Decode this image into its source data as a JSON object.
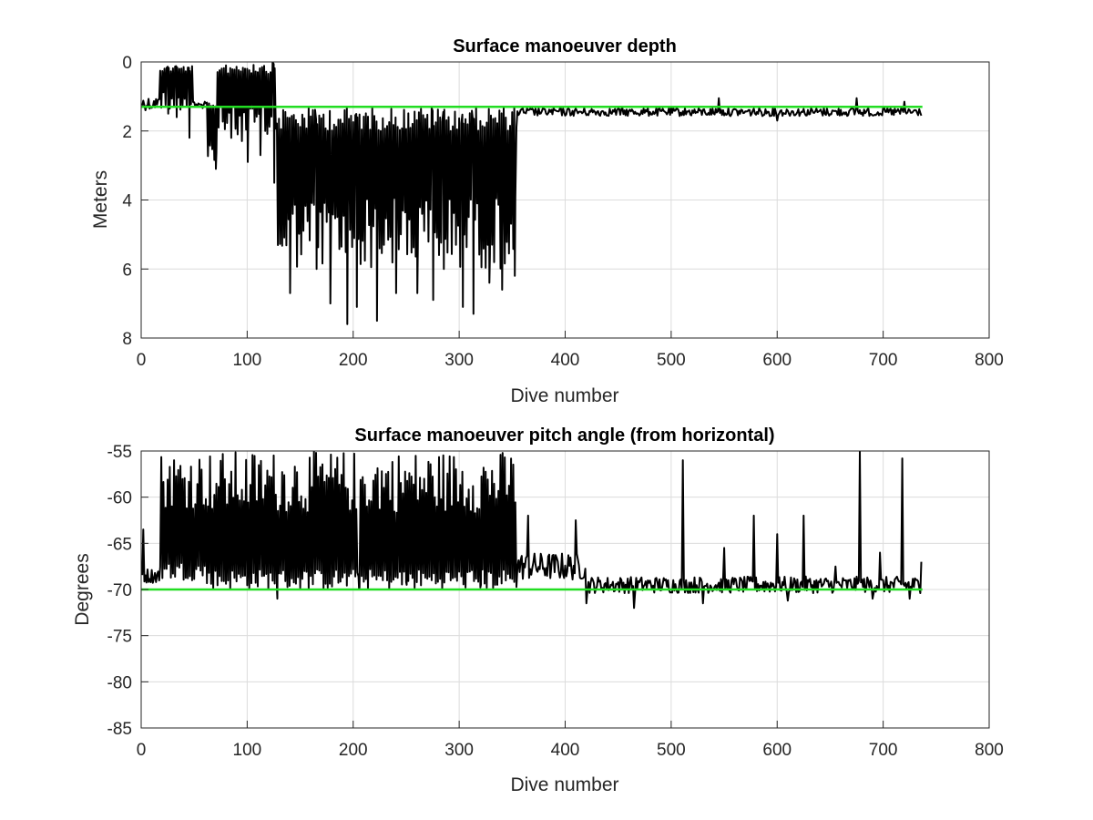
{
  "colors": {
    "data_line": "#000000",
    "reference_line": "#22dd22",
    "grid": "#dcdcdc",
    "axis": "#262626"
  },
  "chart_data": [
    {
      "type": "line",
      "title": "Surface manoeuver depth",
      "xlabel": "Dive number",
      "ylabel": "Meters",
      "xlim": [
        0,
        800
      ],
      "ylim": [
        0,
        8
      ],
      "y_reversed": true,
      "grid": true,
      "xticks": [
        0,
        100,
        200,
        300,
        400,
        500,
        600,
        700,
        800
      ],
      "yticks": [
        0,
        2,
        4,
        6,
        8
      ],
      "series": [
        {
          "color": "#000000",
          "segments": [
            {
              "x_range": [
                1,
                18
              ],
              "mean": 1.2,
              "amp": 0.2,
              "type": "noise"
            },
            {
              "x_range": [
                18,
                50
              ],
              "osc_lo": 0.1,
              "osc_hi": 1.4,
              "spikes": [
                [
                  25,
                  1.5
                ],
                [
                  33,
                  1.6
                ],
                [
                  45,
                  2.2
                ]
              ]
            },
            {
              "x_range": [
                50,
                63
              ],
              "mean": 1.25,
              "amp": 0.1,
              "type": "noise"
            },
            {
              "x_range": [
                63,
                72
              ],
              "osc_lo": 1.2,
              "osc_hi": 3.0,
              "spikes": [
                [
                  70,
                  3.1
                ]
              ]
            },
            {
              "x_range": [
                72,
                128
              ],
              "osc_lo": 0.0,
              "osc_hi": 2.3,
              "spikes": [
                [
                  100,
                  2.9
                ],
                [
                  112,
                  2.7
                ],
                [
                  125,
                  3.5
                ]
              ]
            },
            {
              "x_range": [
                128,
                355
              ],
              "osc_lo": 1.3,
              "osc_hi": 6.0,
              "spikes": [
                [
                  140,
                  6.7
                ],
                [
                  165,
                  6.0
                ],
                [
                  178,
                  7.0
                ],
                [
                  194,
                  7.6
                ],
                [
                  203,
                  7.1
                ],
                [
                  222,
                  7.5
                ],
                [
                  240,
                  6.7
                ],
                [
                  260,
                  6.7
                ],
                [
                  275,
                  6.9
                ],
                [
                  285,
                  6.0
                ],
                [
                  303,
                  7.1
                ],
                [
                  313,
                  7.3
                ],
                [
                  328,
                  6.4
                ],
                [
                  340,
                  6.6
                ],
                [
                  352,
                  6.2
                ]
              ]
            },
            {
              "x_range": [
                355,
                737
              ],
              "mean": 1.45,
              "amp": 0.12,
              "type": "noise",
              "dips": [
                [
                  440,
                  1.55
                ],
                [
                  600,
                  1.7
                ],
                [
                  690,
                  1.55
                ]
              ],
              "peaks": [
                [
                  545,
                  1.05
                ],
                [
                  675,
                  1.05
                ],
                [
                  720,
                  1.15
                ]
              ]
            }
          ]
        },
        {
          "color": "#22dd22",
          "x": [
            0,
            737
          ],
          "values": [
            1.3,
            1.3
          ]
        }
      ]
    },
    {
      "type": "line",
      "title": "Surface manoeuver pitch angle (from horizontal)",
      "xlabel": "Dive number",
      "ylabel": "Degrees",
      "xlim": [
        0,
        800
      ],
      "ylim": [
        -85,
        -55
      ],
      "grid": true,
      "xticks": [
        0,
        100,
        200,
        300,
        400,
        500,
        600,
        700,
        800
      ],
      "yticks": [
        -55,
        -60,
        -65,
        -70,
        -75,
        -80,
        -85
      ],
      "series": [
        {
          "color": "#000000",
          "segments": [
            {
              "x_range": [
                1,
                18
              ],
              "mean": -68.5,
              "amp": 0.8,
              "type": "noise",
              "peaks": [
                [
                  2,
                  -63.5
                ]
              ]
            },
            {
              "x_range": [
                18,
                62
              ],
              "osc_lo": -69.0,
              "osc_hi": -55.0
            },
            {
              "x_range": [
                62,
                355
              ],
              "osc_lo": -70.0,
              "osc_hi": -55.0,
              "spikes": [
                [
                  128,
                  -71.0
                ],
                [
                  205,
                  -70.0
                ],
                [
                  250,
                  -69.5
                ],
                [
                  320,
                  -69.5
                ]
              ]
            },
            {
              "x_range": [
                355,
                420
              ],
              "mean": -67.5,
              "amp": 1.5,
              "type": "noise",
              "peaks": [
                [
                  365,
                  -62.0
                ],
                [
                  410,
                  -62.5
                ]
              ]
            },
            {
              "x_range": [
                420,
                737
              ],
              "mean": -69.5,
              "amp": 0.9,
              "type": "noise",
              "peaks": [
                [
                  511,
                  -56.0
                ],
                [
                  550,
                  -65.5
                ],
                [
                  578,
                  -62.0
                ],
                [
                  600,
                  -64.0
                ],
                [
                  625,
                  -62.0
                ],
                [
                  655,
                  -67.5
                ],
                [
                  678,
                  -55.0
                ],
                [
                  697,
                  -66.0
                ],
                [
                  718,
                  -55.8
                ],
                [
                  736,
                  -67.0
                ]
              ],
              "dips": [
                [
                  420,
                  -71.5
                ],
                [
                  465,
                  -72.0
                ],
                [
                  530,
                  -71.5
                ],
                [
                  610,
                  -71.2
                ],
                [
                  690,
                  -71.0
                ],
                [
                  725,
                  -71.0
                ]
              ]
            }
          ]
        },
        {
          "color": "#22dd22",
          "x": [
            0,
            737
          ],
          "values": [
            -70,
            -70
          ]
        }
      ]
    }
  ]
}
